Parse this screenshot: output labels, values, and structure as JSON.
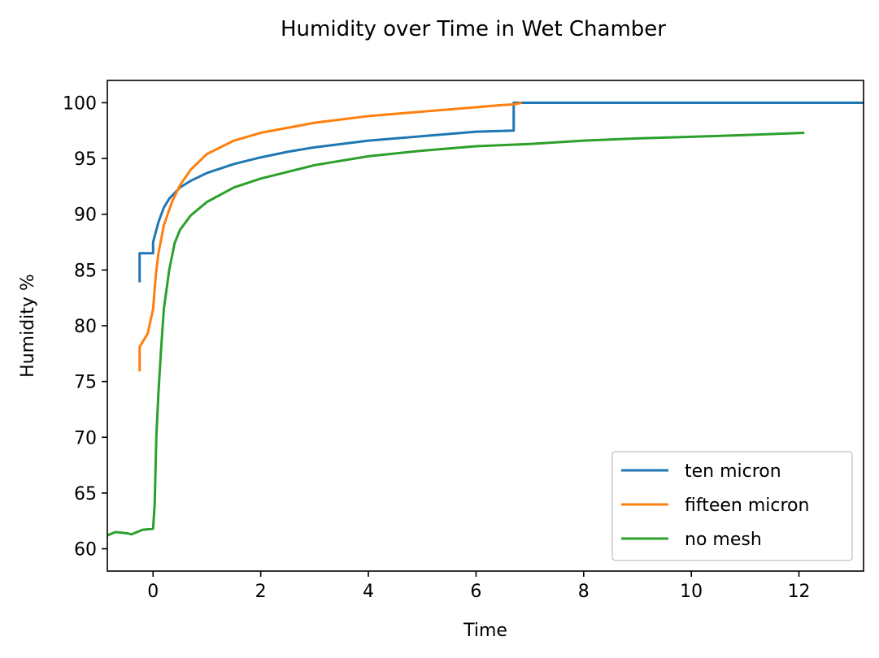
{
  "chart_data": {
    "type": "line",
    "title": "Humidity over Time in Wet Chamber",
    "xlabel": "Time",
    "ylabel": "Humidity %",
    "xlim": [
      -0.85,
      13.2
    ],
    "ylim": [
      58,
      102
    ],
    "xticks": [
      0,
      2,
      4,
      6,
      8,
      10,
      12
    ],
    "yticks": [
      60,
      65,
      70,
      75,
      80,
      85,
      90,
      95,
      100
    ],
    "grid": false,
    "legend_position": "lower right",
    "series": [
      {
        "name": "ten micron",
        "color": "#1f77b4",
        "x": [
          -0.25,
          -0.25,
          -0.2,
          0.0,
          0.0,
          0.05,
          0.1,
          0.2,
          0.3,
          0.5,
          0.7,
          1.0,
          1.5,
          2.0,
          2.5,
          3.0,
          3.5,
          4.0,
          5.0,
          6.0,
          6.7,
          6.7,
          7.5,
          9.0,
          11.0,
          13.2
        ],
        "y": [
          83.9,
          86.5,
          86.5,
          86.5,
          87.5,
          88.4,
          89.3,
          90.6,
          91.4,
          92.4,
          93.0,
          93.7,
          94.5,
          95.1,
          95.6,
          96.0,
          96.3,
          96.6,
          97.0,
          97.4,
          97.5,
          100.0,
          100.0,
          100.0,
          100.0,
          100.0
        ]
      },
      {
        "name": "fifteen micron",
        "color": "#ff7f0e",
        "x": [
          -0.25,
          -0.25,
          -0.1,
          0.0,
          0.05,
          0.1,
          0.2,
          0.35,
          0.5,
          0.7,
          1.0,
          1.5,
          2.0,
          3.0,
          4.0,
          5.0,
          6.0,
          6.5,
          6.7,
          6.85
        ],
        "y": [
          75.9,
          78.1,
          79.3,
          81.5,
          84.5,
          86.5,
          89.0,
          91.1,
          92.6,
          94.0,
          95.4,
          96.6,
          97.3,
          98.2,
          98.8,
          99.2,
          99.6,
          99.8,
          99.85,
          100.0
        ]
      },
      {
        "name": "no mesh",
        "color": "#2ca02c",
        "x": [
          -0.85,
          -0.7,
          -0.5,
          -0.4,
          -0.3,
          -0.2,
          0.0,
          0.03,
          0.06,
          0.1,
          0.15,
          0.2,
          0.3,
          0.4,
          0.5,
          0.7,
          1.0,
          1.5,
          2.0,
          3.0,
          4.0,
          5.0,
          6.0,
          7.0,
          8.0,
          9.0,
          10.0,
          11.0,
          12.1
        ],
        "y": [
          61.2,
          61.5,
          61.4,
          61.3,
          61.5,
          61.7,
          61.8,
          64.0,
          70.0,
          74.0,
          78.0,
          81.5,
          85.0,
          87.4,
          88.6,
          89.9,
          91.1,
          92.4,
          93.2,
          94.4,
          95.2,
          95.7,
          96.1,
          96.3,
          96.6,
          96.8,
          96.95,
          97.1,
          97.3
        ]
      }
    ]
  }
}
